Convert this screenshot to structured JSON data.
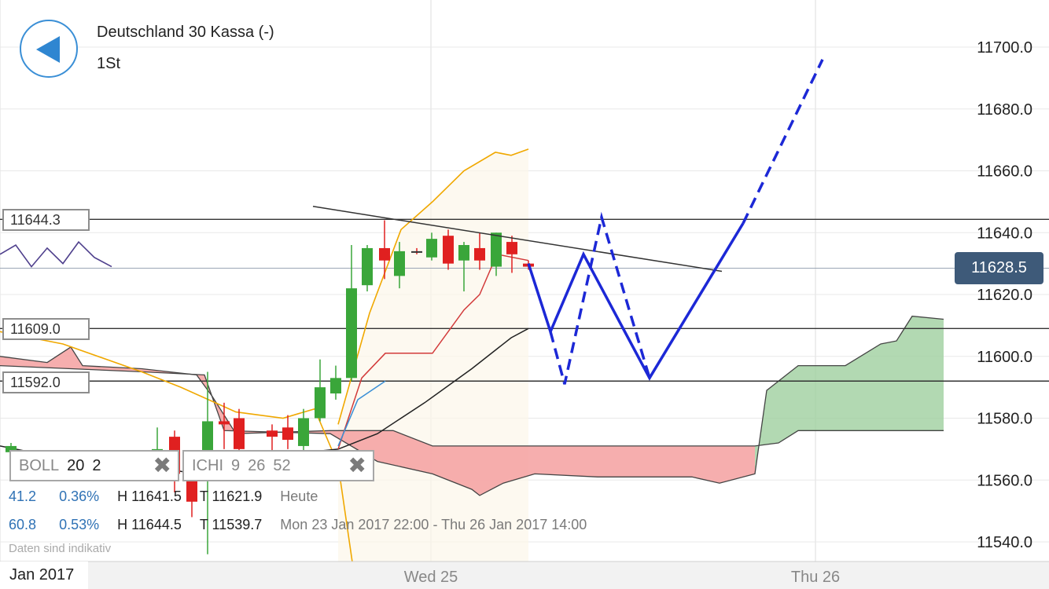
{
  "instrument": {
    "title": "Deutschland 30 Kassa (-)",
    "period": "1St"
  },
  "levels": [
    {
      "label": "11644.3",
      "value": 11644.3
    },
    {
      "label": "11609.0",
      "value": 11609.0
    },
    {
      "label": "11592.0",
      "value": 11592.0
    }
  ],
  "price_tag": "11628.5",
  "indicators": {
    "boll": {
      "name": "BOLL",
      "p1": "20",
      "p2": "2",
      "close": "✖"
    },
    "ichi": {
      "name": "ICHI",
      "p1": "9",
      "p2": "26",
      "p3": "52",
      "close": "✖"
    }
  },
  "stats": {
    "row1": {
      "a": "41.2",
      "b": "0.36%",
      "high": "H 11641.5",
      "low": "T 11621.9",
      "range": "Heute"
    },
    "row2": {
      "a": "60.8",
      "b": "0.53%",
      "high": "H 11644.5",
      "low": "T 11539.7",
      "range": "Mon 23 Jan 2017 22:00 - Thu 26 Jan 2017 14:00"
    }
  },
  "disclaimer": "Daten sind indikativ",
  "colors": {
    "up": "#3aa63a",
    "down": "#e02020",
    "doji": "#7a6a2a",
    "boll_upper": "#f0a800",
    "tenkan": "#d23a3a",
    "kijun": "#222222",
    "chikou": "#4e3f8c",
    "senkou_a": "#3a8fd6",
    "cloud_bull": "#9fd09f",
    "cloud_bear": "#f5a0a0",
    "projection": "#1c28d6"
  },
  "chart_data": {
    "type": "candlestick",
    "title": "Deutschland 30 Kassa (-)",
    "timeframe": "1St",
    "x_labels": [
      "Jan 2017",
      "Wed 25",
      "Thu 26"
    ],
    "y_ticks": [
      "11540.0",
      "11560.0",
      "11580.0",
      "11600.0",
      "11620.0",
      "11640.0",
      "11660.0",
      "11680.0",
      "11700.0"
    ],
    "ylim": [
      11534,
      11715
    ],
    "last_price": 11628.5,
    "horizontal_levels": [
      11644.3,
      11609.0,
      11592.0,
      11628.5
    ],
    "candles": [
      {
        "x": 14,
        "o": 11569,
        "h": 11572,
        "l": 11563,
        "c": 11571
      },
      {
        "x": 200,
        "o": 11564,
        "h": 11577,
        "l": 11560,
        "c": 11570
      },
      {
        "x": 222,
        "o": 11574,
        "h": 11576,
        "l": 11556,
        "c": 11562
      },
      {
        "x": 244,
        "o": 11563,
        "h": 11566,
        "l": 11548,
        "c": 11553
      },
      {
        "x": 264,
        "o": 11565,
        "h": 11595,
        "l": 11536,
        "c": 11579
      },
      {
        "x": 285,
        "o": 11579,
        "h": 11585,
        "l": 11570,
        "c": 11578
      },
      {
        "x": 304,
        "o": 11580,
        "h": 11583,
        "l": 11560,
        "c": 11570
      },
      {
        "x": 346,
        "o": 11576,
        "h": 11578,
        "l": 11569,
        "c": 11574
      },
      {
        "x": 366,
        "o": 11577,
        "h": 11581,
        "l": 11570,
        "c": 11573
      },
      {
        "x": 386,
        "o": 11571,
        "h": 11583,
        "l": 11569,
        "c": 11580
      },
      {
        "x": 407,
        "o": 11580,
        "h": 11599,
        "l": 11579,
        "c": 11590
      },
      {
        "x": 427,
        "o": 11588,
        "h": 11597,
        "l": 11586,
        "c": 11593
      },
      {
        "x": 447,
        "o": 11593,
        "h": 11636,
        "l": 11592,
        "c": 11622
      },
      {
        "x": 467,
        "o": 11623,
        "h": 11636,
        "l": 11621,
        "c": 11635
      },
      {
        "x": 489,
        "o": 11635,
        "h": 11644,
        "l": 11625,
        "c": 11631
      },
      {
        "x": 508,
        "o": 11626,
        "h": 11637,
        "l": 11622,
        "c": 11634
      },
      {
        "x": 530,
        "o": 11634,
        "h": 11635,
        "l": 11633,
        "c": 11634
      },
      {
        "x": 549,
        "o": 11632,
        "h": 11640,
        "l": 11631,
        "c": 11638
      },
      {
        "x": 570,
        "o": 11639,
        "h": 11641,
        "l": 11628,
        "c": 11630
      },
      {
        "x": 590,
        "o": 11631,
        "h": 11637,
        "l": 11621,
        "c": 11636
      },
      {
        "x": 610,
        "o": 11635,
        "h": 11640,
        "l": 11628,
        "c": 11631
      },
      {
        "x": 631,
        "o": 11629,
        "h": 11640,
        "l": 11626,
        "c": 11640
      },
      {
        "x": 651,
        "o": 11637,
        "h": 11639,
        "l": 11627,
        "c": 11633
      },
      {
        "x": 672,
        "o": 11630,
        "h": 11631,
        "l": 11628,
        "c": 11629
      }
    ],
    "bollinger_upper": [
      [
        430,
        11578
      ],
      [
        470,
        11614
      ],
      [
        510,
        11641
      ],
      [
        550,
        11650
      ],
      [
        590,
        11660
      ],
      [
        630,
        11666
      ],
      [
        650,
        11665
      ],
      [
        672,
        11667
      ]
    ],
    "bollinger_lower": [
      [
        0,
        11608
      ],
      [
        80,
        11604
      ],
      [
        180,
        11595
      ],
      [
        230,
        11590
      ],
      [
        300,
        11582
      ],
      [
        360,
        11580
      ],
      [
        400,
        11583
      ],
      [
        430,
        11565
      ],
      [
        450,
        11530
      ]
    ],
    "tenkan": [
      [
        430,
        11570
      ],
      [
        460,
        11593
      ],
      [
        490,
        11601
      ],
      [
        550,
        11601
      ],
      [
        590,
        11615
      ],
      [
        610,
        11620
      ],
      [
        632,
        11633
      ],
      [
        672,
        11631
      ]
    ],
    "kijun": [
      [
        0,
        11571
      ],
      [
        60,
        11568
      ],
      [
        150,
        11566
      ],
      [
        250,
        11562
      ],
      [
        350,
        11568
      ],
      [
        430,
        11570
      ],
      [
        480,
        11575
      ],
      [
        540,
        11585
      ],
      [
        600,
        11596
      ],
      [
        650,
        11606
      ],
      [
        672,
        11609
      ]
    ],
    "chikou": [
      [
        0,
        11633
      ],
      [
        20,
        11636
      ],
      [
        40,
        11629
      ],
      [
        60,
        11635
      ],
      [
        80,
        11630
      ],
      [
        100,
        11637
      ],
      [
        120,
        11632
      ],
      [
        142,
        11629
      ]
    ],
    "senkou_a": [
      [
        430,
        11571
      ],
      [
        455,
        11586
      ],
      [
        490,
        11592
      ]
    ],
    "trendline": [
      [
        398,
        11648.5
      ],
      [
        918,
        11627.5
      ]
    ],
    "cloud_top": [
      [
        0,
        11600
      ],
      [
        60,
        11598
      ],
      [
        90,
        11603
      ],
      [
        105,
        11597
      ],
      [
        180,
        11596
      ],
      [
        250,
        11594
      ],
      [
        270,
        11587
      ],
      [
        300,
        11575
      ],
      [
        420,
        11576
      ],
      [
        500,
        11576
      ],
      [
        550,
        11571
      ],
      [
        960,
        11571
      ],
      [
        990,
        11572
      ],
      [
        1015,
        11576
      ],
      [
        1200,
        11576
      ]
    ],
    "cloud_bottom": [
      [
        0,
        11597
      ],
      [
        180,
        11595
      ],
      [
        260,
        11594
      ],
      [
        285,
        11576
      ],
      [
        420,
        11575
      ],
      [
        480,
        11566
      ],
      [
        550,
        11562
      ],
      [
        600,
        11557
      ],
      [
        610,
        11555
      ],
      [
        640,
        11559
      ],
      [
        680,
        11562
      ],
      [
        760,
        11561
      ],
      [
        800,
        11561
      ],
      [
        880,
        11561
      ],
      [
        915,
        11559
      ],
      [
        960,
        11562
      ],
      [
        975,
        11589
      ],
      [
        1015,
        11597
      ],
      [
        1075,
        11597
      ],
      [
        1120,
        11604
      ],
      [
        1140,
        11605
      ],
      [
        1160,
        11613
      ],
      [
        1200,
        11612
      ]
    ],
    "projection_solid": [
      [
        672,
        11630
      ],
      [
        700,
        11608
      ],
      [
        742,
        11633
      ],
      [
        826,
        11593
      ],
      [
        945,
        11643
      ]
    ],
    "projection_dashed": [
      [
        700,
        11608
      ],
      [
        718,
        11591
      ],
      [
        765,
        11645
      ],
      [
        826,
        11593
      ]
    ],
    "projection_dashed_up": [
      [
        945,
        11643
      ],
      [
        1046,
        11696
      ]
    ]
  }
}
